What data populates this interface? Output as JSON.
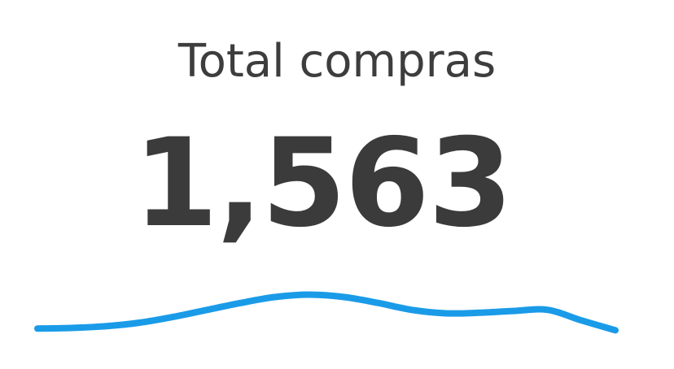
{
  "widget": {
    "title": "Total compras",
    "value": "1,563",
    "accent_color": "#1a9be8",
    "text_color": "#3d3d3d"
  },
  "sparkline": {
    "values": [
      0.08,
      0.09,
      0.12,
      0.18,
      0.28,
      0.4,
      0.52,
      0.62,
      0.66,
      0.62,
      0.52,
      0.4,
      0.34,
      0.35,
      0.38,
      0.4,
      0.22,
      0.05
    ]
  }
}
